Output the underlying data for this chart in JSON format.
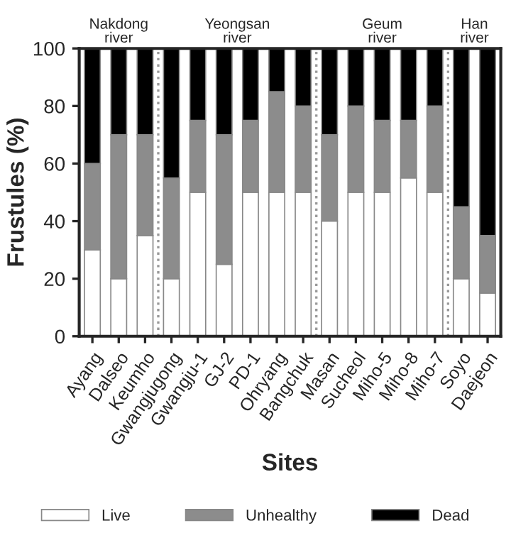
{
  "chart_data": {
    "type": "bar",
    "stacked": true,
    "xlabel": "Sites",
    "ylabel": "Frustules (%)",
    "categories": [
      "Ayang",
      "Dalseo",
      "Keumho",
      "Gwangjugong",
      "Gwangju-1",
      "GJ-2",
      "PD-1",
      "Ohryang",
      "Bangchuk",
      "Masan",
      "Sucheol",
      "Miho-5",
      "Miho-8",
      "Miho-7",
      "Soyo",
      "Daejeon"
    ],
    "series": [
      {
        "name": "Live",
        "color": "#ffffff",
        "values": [
          30,
          20,
          35,
          20,
          50,
          25,
          50,
          50,
          50,
          40,
          50,
          50,
          55,
          50,
          20,
          15
        ]
      },
      {
        "name": "Unhealthy",
        "color": "#8c8c8c",
        "values": [
          30,
          50,
          35,
          35,
          25,
          45,
          25,
          35,
          30,
          30,
          30,
          25,
          20,
          30,
          25,
          20
        ]
      },
      {
        "name": "Dead",
        "color": "#000000",
        "values": [
          40,
          30,
          30,
          45,
          25,
          30,
          25,
          15,
          20,
          30,
          20,
          25,
          25,
          20,
          55,
          65
        ]
      }
    ],
    "ylim": [
      0,
      100
    ],
    "yticks": [
      0,
      20,
      40,
      60,
      80,
      100
    ],
    "annotations": [
      "Nakdong\nriver",
      "Yeongsan\nriver",
      "Geum\nriver",
      "Han\nriver"
    ],
    "legend": "bottom",
    "grid": false
  }
}
